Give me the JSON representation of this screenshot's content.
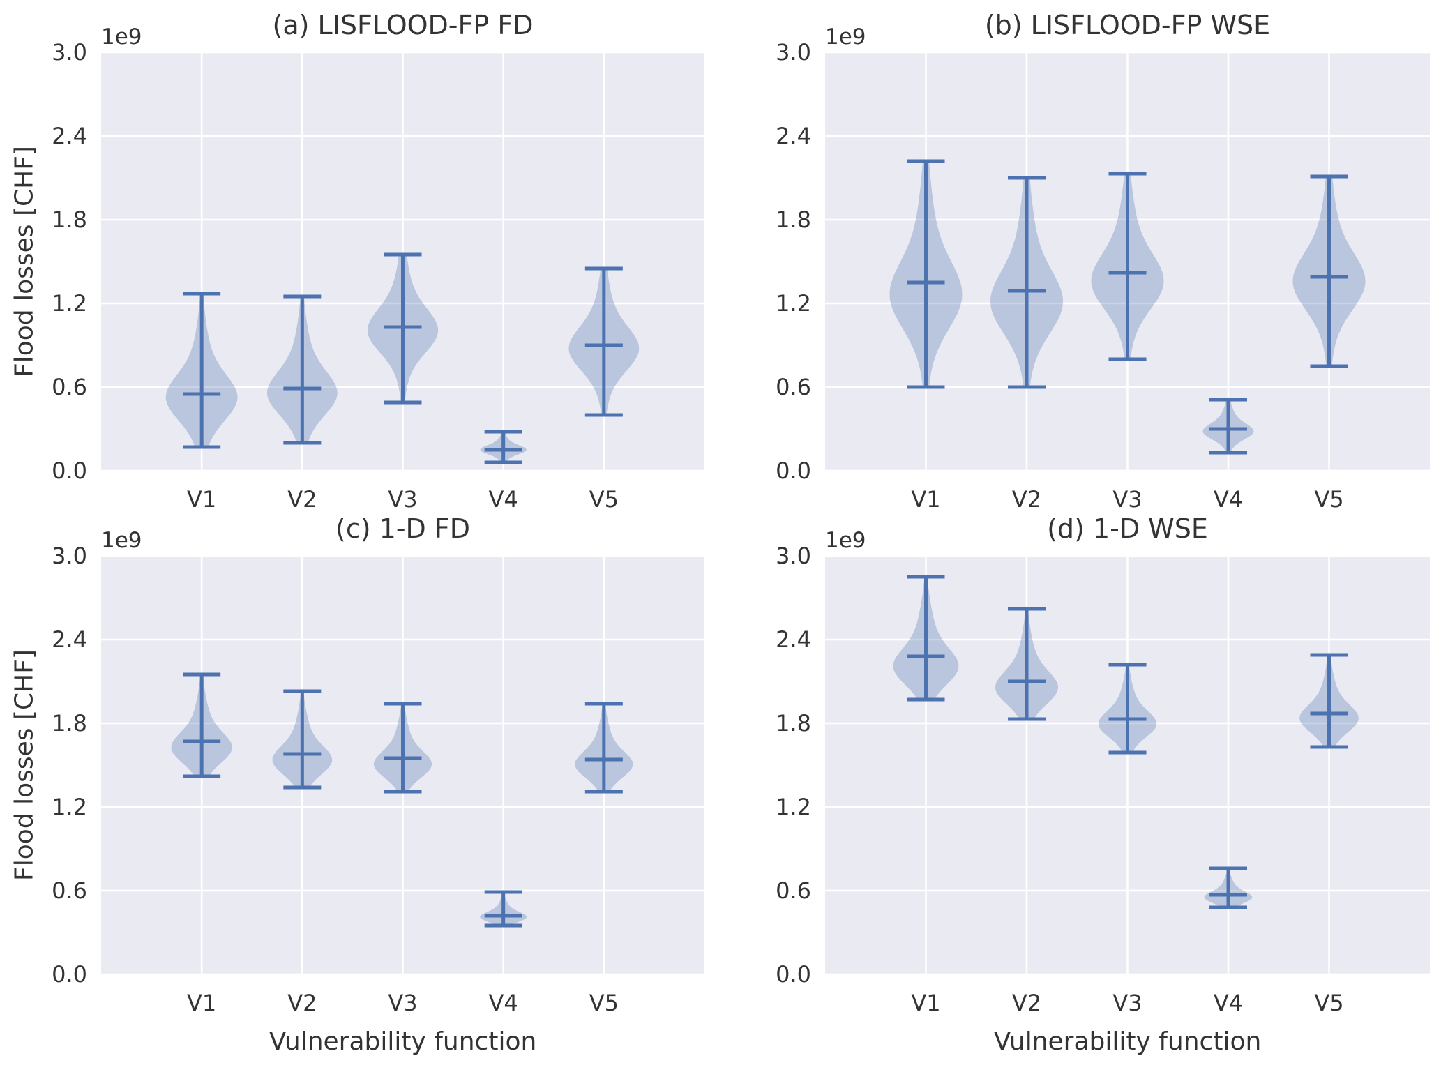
{
  "figure": {
    "xlabel": "Vulnerability function",
    "ylabel": "Flood losses [CHF]"
  },
  "style": {
    "face": "#EAEAF2",
    "grid": "#FFFFFF",
    "violin_fill": "#4C72B0",
    "violin_alpha": 0.3,
    "stat_line": "#4C72B0"
  },
  "chart_data": [
    {
      "type": "violin",
      "title": "(a) LISFLOOD-FP FD",
      "categories": [
        "V1",
        "V2",
        "V3",
        "V4",
        "V5"
      ],
      "yticks": [
        "0.0",
        "0.6",
        "1.2",
        "1.8",
        "2.4",
        "3.0"
      ],
      "ylim": [
        0,
        3.0
      ],
      "y_offset_label": "1e9",
      "xlabel": "",
      "ylabel": "Flood losses [CHF]",
      "grid": true,
      "series": [
        {
          "category": "V1",
          "min": 0.17,
          "max": 1.27,
          "mean": 0.55,
          "mode": 0.52
        },
        {
          "category": "V2",
          "min": 0.2,
          "max": 1.25,
          "mean": 0.59,
          "mode": 0.55
        },
        {
          "category": "V3",
          "min": 0.49,
          "max": 1.55,
          "mean": 1.03,
          "mode": 1.0
        },
        {
          "category": "V4",
          "min": 0.06,
          "max": 0.28,
          "mean": 0.15,
          "mode": 0.15
        },
        {
          "category": "V5",
          "min": 0.4,
          "max": 1.45,
          "mean": 0.9,
          "mode": 0.87
        }
      ]
    },
    {
      "type": "violin",
      "title": "(b) LISFLOOD-FP WSE",
      "categories": [
        "V1",
        "V2",
        "V3",
        "V4",
        "V5"
      ],
      "yticks": [
        "0.0",
        "0.6",
        "1.2",
        "1.8",
        "2.4",
        "3.0"
      ],
      "ylim": [
        0,
        3.0
      ],
      "y_offset_label": "1e9",
      "xlabel": "",
      "ylabel": "",
      "grid": true,
      "series": [
        {
          "category": "V1",
          "min": 0.6,
          "max": 2.22,
          "mean": 1.35,
          "mode": 1.25
        },
        {
          "category": "V2",
          "min": 0.6,
          "max": 2.1,
          "mean": 1.29,
          "mode": 1.2
        },
        {
          "category": "V3",
          "min": 0.8,
          "max": 2.13,
          "mean": 1.42,
          "mode": 1.35
        },
        {
          "category": "V4",
          "min": 0.13,
          "max": 0.51,
          "mean": 0.3,
          "mode": 0.28
        },
        {
          "category": "V5",
          "min": 0.75,
          "max": 2.11,
          "mean": 1.39,
          "mode": 1.35
        }
      ]
    },
    {
      "type": "violin",
      "title": "(c) 1-D FD",
      "categories": [
        "V1",
        "V2",
        "V3",
        "V4",
        "V5"
      ],
      "yticks": [
        "0.0",
        "0.6",
        "1.2",
        "1.8",
        "2.4",
        "3.0"
      ],
      "ylim": [
        0,
        3.0
      ],
      "y_offset_label": "1e9",
      "xlabel": "Vulnerability function",
      "ylabel": "Flood losses [CHF]",
      "grid": true,
      "series": [
        {
          "category": "V1",
          "min": 1.42,
          "max": 2.15,
          "mean": 1.67,
          "mode": 1.62
        },
        {
          "category": "V2",
          "min": 1.34,
          "max": 2.03,
          "mean": 1.58,
          "mode": 1.53
        },
        {
          "category": "V3",
          "min": 1.31,
          "max": 1.94,
          "mean": 1.55,
          "mode": 1.5
        },
        {
          "category": "V4",
          "min": 0.35,
          "max": 0.59,
          "mean": 0.42,
          "mode": 0.41
        },
        {
          "category": "V5",
          "min": 1.31,
          "max": 1.94,
          "mean": 1.54,
          "mode": 1.5
        }
      ]
    },
    {
      "type": "violin",
      "title": "(d) 1-D WSE",
      "categories": [
        "V1",
        "V2",
        "V3",
        "V4",
        "V5"
      ],
      "yticks": [
        "0.0",
        "0.6",
        "1.2",
        "1.8",
        "2.4",
        "3.0"
      ],
      "ylim": [
        0,
        3.0
      ],
      "y_offset_label": "1e9",
      "xlabel": "Vulnerability function",
      "ylabel": "",
      "grid": true,
      "series": [
        {
          "category": "V1",
          "min": 1.97,
          "max": 2.85,
          "mean": 2.28,
          "mode": 2.2
        },
        {
          "category": "V2",
          "min": 1.83,
          "max": 2.62,
          "mean": 2.1,
          "mode": 2.05
        },
        {
          "category": "V3",
          "min": 1.59,
          "max": 2.22,
          "mean": 1.83,
          "mode": 1.79
        },
        {
          "category": "V4",
          "min": 0.48,
          "max": 0.76,
          "mean": 0.57,
          "mode": 0.55
        },
        {
          "category": "V5",
          "min": 1.63,
          "max": 2.29,
          "mean": 1.87,
          "mode": 1.83
        }
      ]
    }
  ]
}
